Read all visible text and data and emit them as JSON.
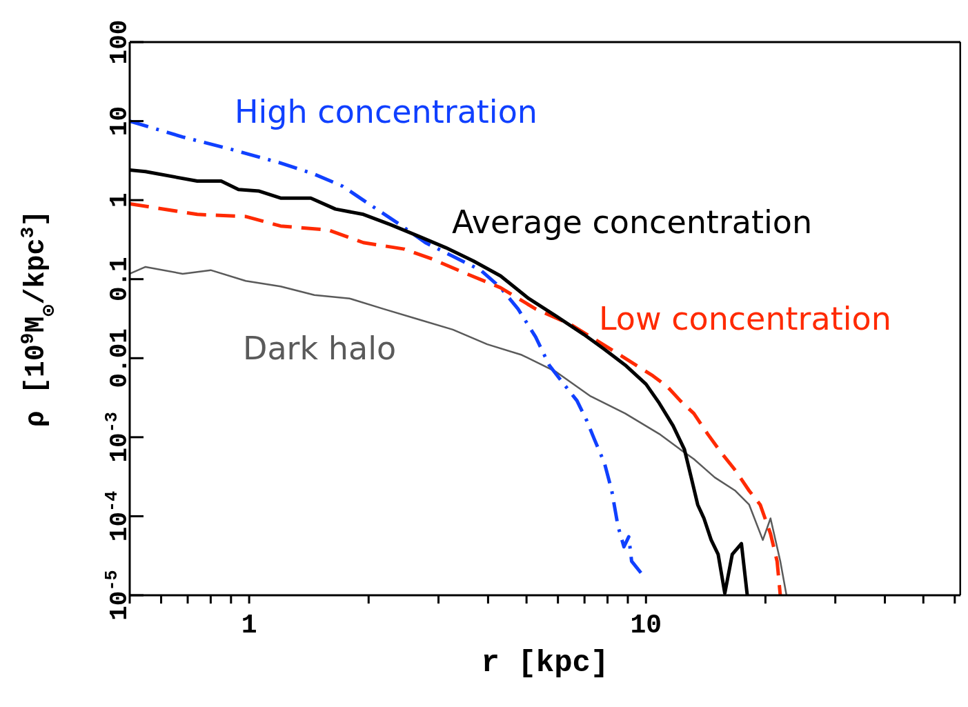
{
  "chart_data": {
    "type": "line",
    "xlabel": "r [kpc]",
    "ylabel": "ρ [10$^{9}$M$_{⊙}$/kpc$^{3}$]",
    "log": "xy",
    "marker": "none",
    "xlim": [
      0.5,
      62
    ],
    "ylim": [
      1e-05,
      100
    ],
    "xticks": [
      {
        "value": 0.5,
        "label": null
      },
      {
        "value": 0.6,
        "label": null
      },
      {
        "value": 0.7,
        "label": null
      },
      {
        "value": 0.8,
        "label": null
      },
      {
        "value": 0.9,
        "label": null
      },
      1,
      {
        "value": 2,
        "label": null
      },
      {
        "value": 3,
        "label": null
      },
      {
        "value": 4,
        "label": null
      },
      {
        "value": 5,
        "label": null
      },
      {
        "value": 6,
        "label": null
      },
      {
        "value": 7,
        "label": null
      },
      {
        "value": 8,
        "label": null
      },
      {
        "value": 9,
        "label": null
      },
      10,
      {
        "value": 20,
        "label": null
      },
      {
        "value": 30,
        "label": null
      },
      {
        "value": 40,
        "label": null
      },
      {
        "value": 50,
        "label": null
      },
      {
        "value": 60,
        "label": null
      }
    ],
    "yticks": [
      {
        "value": 1e-05,
        "label": "10$^{-5}$"
      },
      {
        "value": 0.0001,
        "label": "10$^{-4}$"
      },
      {
        "value": 0.001,
        "label": "10$^{-3}$"
      },
      0.01,
      0.1,
      1,
      10,
      100
    ],
    "series": [
      {
        "name": "Dark halo",
        "color": "#5a5a5a",
        "line_style": "solid",
        "x": [
          0.5,
          0.548,
          0.68,
          0.8,
          0.98,
          1.2,
          1.46,
          1.79,
          2.18,
          2.67,
          3.26,
          3.98,
          4.86,
          5.94,
          7.25,
          8.86,
          10.8,
          12.2,
          13.2,
          14.9,
          16.8,
          18.2,
          19.7,
          20.6,
          21.8,
          22.6
        ],
        "values": [
          0.117,
          0.143,
          0.117,
          0.13,
          0.095,
          0.081,
          0.063,
          0.057,
          0.042,
          0.031,
          0.023,
          0.015,
          0.011,
          0.0067,
          0.0033,
          0.002,
          0.0011,
          0.0007,
          0.00053,
          0.00031,
          0.00021,
          0.00014,
          5e-05,
          9.4e-05,
          2.7e-05,
          1e-05
        ]
      },
      {
        "name": "High concentration",
        "color": "#1040ff",
        "line_style": "dashdot",
        "x": [
          0.5,
          0.68,
          0.9,
          1.2,
          1.46,
          1.72,
          2.0,
          2.37,
          2.78,
          3.26,
          3.83,
          4.3,
          4.76,
          5.27,
          5.7,
          6.17,
          6.7,
          7.1,
          7.4,
          7.86,
          8.2,
          8.5,
          8.8,
          9.05,
          9.2,
          10
        ],
        "values": [
          10,
          6.3,
          4.4,
          2.95,
          2.13,
          1.5,
          0.9,
          0.51,
          0.29,
          0.195,
          0.13,
          0.078,
          0.042,
          0.0186,
          0.0082,
          0.0049,
          0.0029,
          0.0016,
          0.00096,
          0.00047,
          0.00021,
          7.5e-05,
          4.1e-05,
          5.5e-05,
          2.7e-05,
          1.6e-05
        ]
      },
      {
        "name": "Low concentration",
        "color": "#ff2a00",
        "line_style": "dashed",
        "x": [
          0.5,
          0.74,
          0.98,
          1.2,
          1.58,
          1.94,
          2.46,
          2.89,
          3.53,
          4.3,
          5.27,
          6.43,
          7.5,
          8.86,
          10.4,
          11.3,
          12.2,
          13.2,
          14.3,
          15.5,
          16.8,
          18.2,
          19.4,
          20.6,
          21.4,
          21.8
        ],
        "values": [
          0.9,
          0.66,
          0.62,
          0.47,
          0.42,
          0.29,
          0.24,
          0.18,
          0.117,
          0.078,
          0.042,
          0.027,
          0.0168,
          0.01,
          0.006,
          0.0044,
          0.0029,
          0.002,
          0.0011,
          0.00063,
          0.00038,
          0.00021,
          0.00014,
          6e-05,
          2.7e-05,
          1e-05
        ]
      },
      {
        "name": "Average concentration",
        "color": "#000000",
        "line_style": "solid",
        "x": [
          0.5,
          0.548,
          0.74,
          0.85,
          0.94,
          1.06,
          1.2,
          1.43,
          1.65,
          1.94,
          2.27,
          2.67,
          3.13,
          3.67,
          4.3,
          5.06,
          5.94,
          6.97,
          7.85,
          8.86,
          10,
          10.8,
          11.7,
          12.5,
          13,
          13.5,
          14,
          14.6,
          15.2,
          15.8,
          16.5,
          17.4,
          18
        ],
        "values": [
          2.4,
          2.3,
          1.74,
          1.74,
          1.36,
          1.3,
          1.06,
          1.06,
          0.77,
          0.66,
          0.49,
          0.35,
          0.25,
          0.17,
          0.11,
          0.057,
          0.034,
          0.02,
          0.013,
          0.0082,
          0.0047,
          0.0027,
          0.0014,
          0.0007,
          0.00031,
          0.00014,
          9.4e-05,
          5e-05,
          3.3e-05,
          1.06e-05,
          3.3e-05,
          4.5e-05,
          1e-05
        ]
      }
    ]
  }
}
